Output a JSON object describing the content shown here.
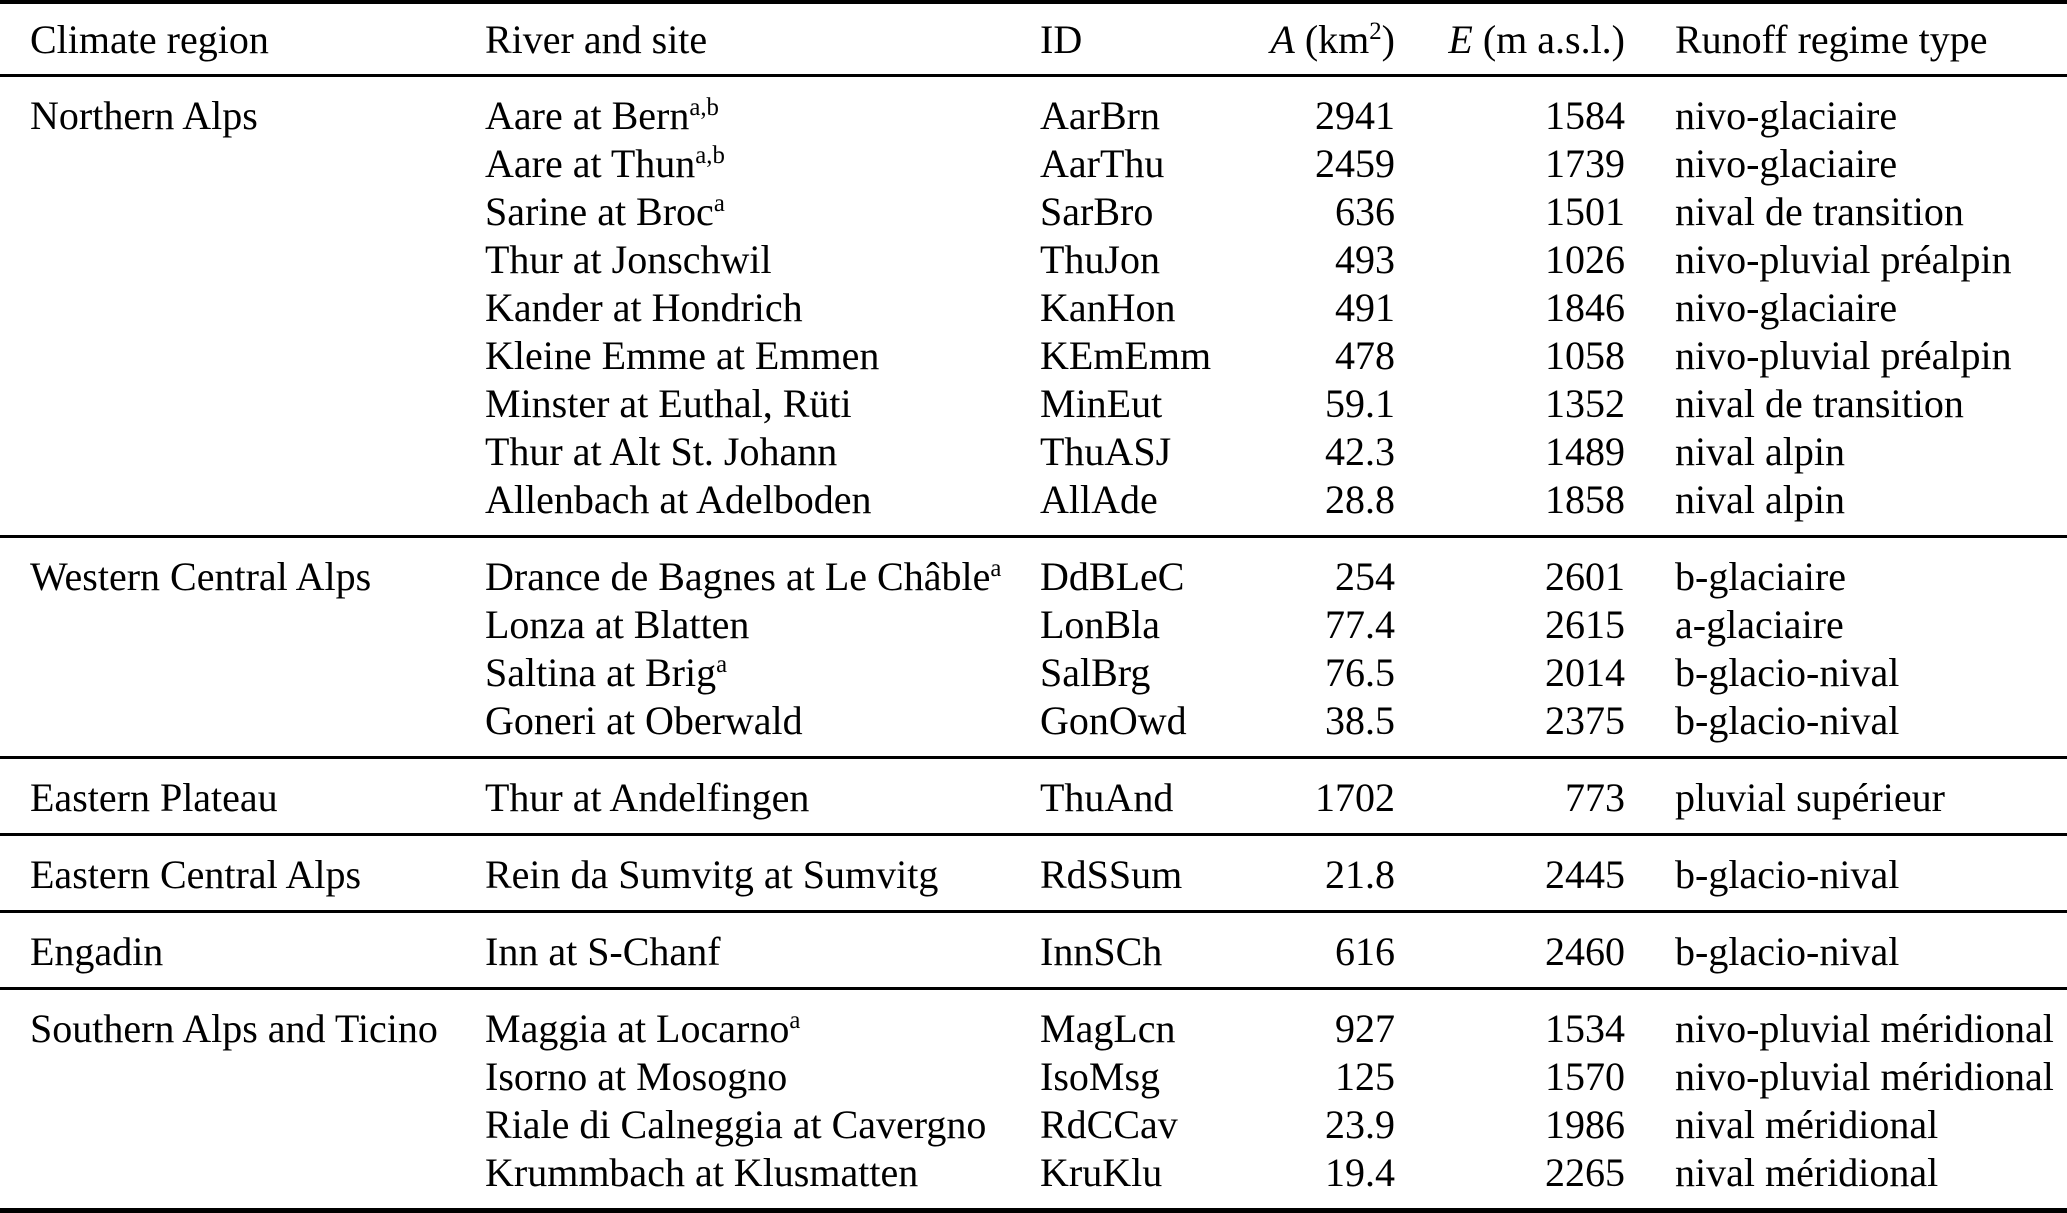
{
  "page": {
    "background_color": "#ffffff",
    "text_color": "#000000",
    "rule_color": "#000000"
  },
  "table": {
    "columns": {
      "climate_region": "Climate region",
      "river_site": "River and site",
      "id": "ID",
      "area_var": "A",
      "area_unit_pre": " (km",
      "area_unit_sup": "2",
      "area_unit_post": ")",
      "elev_var": "E",
      "elev_unit": " (m a.s.l.)",
      "regime": "Runoff regime type"
    },
    "sections": [
      {
        "region": "Northern Alps",
        "rows": [
          {
            "river": "Aare at Bern",
            "sup": "a,b",
            "id": "AarBrn",
            "area": "2941",
            "elevation": "1584",
            "regime": "nivo-glaciaire"
          },
          {
            "river": "Aare at Thun",
            "sup": "a,b",
            "id": "AarThu",
            "area": "2459",
            "elevation": "1739",
            "regime": "nivo-glaciaire"
          },
          {
            "river": "Sarine at Broc",
            "sup": "a",
            "id": "SarBro",
            "area": "636",
            "elevation": "1501",
            "regime": "nival de transition"
          },
          {
            "river": "Thur at Jonschwil",
            "sup": "",
            "id": "ThuJon",
            "area": "493",
            "elevation": "1026",
            "regime": "nivo-pluvial préalpin"
          },
          {
            "river": "Kander at Hondrich",
            "sup": "",
            "id": "KanHon",
            "area": "491",
            "elevation": "1846",
            "regime": "nivo-glaciaire"
          },
          {
            "river": "Kleine Emme at Emmen",
            "sup": "",
            "id": "KEmEmm",
            "area": "478",
            "elevation": "1058",
            "regime": "nivo-pluvial préalpin"
          },
          {
            "river": "Minster at Euthal, Rüti",
            "sup": "",
            "id": "MinEut",
            "area": "59.1",
            "elevation": "1352",
            "regime": "nival de transition"
          },
          {
            "river": "Thur at Alt St. Johann",
            "sup": "",
            "id": "ThuASJ",
            "area": "42.3",
            "elevation": "1489",
            "regime": "nival alpin"
          },
          {
            "river": "Allenbach at Adelboden",
            "sup": "",
            "id": "AllAde",
            "area": "28.8",
            "elevation": "1858",
            "regime": "nival alpin"
          }
        ]
      },
      {
        "region": "Western Central Alps",
        "rows": [
          {
            "river": "Drance de Bagnes at Le Châble",
            "sup": "a",
            "id": "DdBLeC",
            "area": "254",
            "elevation": "2601",
            "regime": "b-glaciaire"
          },
          {
            "river": "Lonza at Blatten",
            "sup": "",
            "id": "LonBla",
            "area": "77.4",
            "elevation": "2615",
            "regime": "a-glaciaire"
          },
          {
            "river": "Saltina at Brig",
            "sup": "a",
            "id": "SalBrg",
            "area": "76.5",
            "elevation": "2014",
            "regime": "b-glacio-nival"
          },
          {
            "river": "Goneri at Oberwald",
            "sup": "",
            "id": "GonOwd",
            "area": "38.5",
            "elevation": "2375",
            "regime": "b-glacio-nival"
          }
        ]
      },
      {
        "region": "Eastern Plateau",
        "rows": [
          {
            "river": "Thur at Andelfingen",
            "sup": "",
            "id": "ThuAnd",
            "area": "1702",
            "elevation": "773",
            "regime": "pluvial supérieur"
          }
        ]
      },
      {
        "region": "Eastern Central Alps",
        "rows": [
          {
            "river": "Rein da Sumvitg at Sumvitg",
            "sup": "",
            "id": "RdSSum",
            "area": "21.8",
            "elevation": "2445",
            "regime": "b-glacio-nival"
          }
        ]
      },
      {
        "region": "Engadin",
        "rows": [
          {
            "river": "Inn at S-Chanf",
            "sup": "",
            "id": "InnSCh",
            "area": "616",
            "elevation": "2460",
            "regime": "b-glacio-nival"
          }
        ]
      },
      {
        "region": "Southern Alps and Ticino",
        "rows": [
          {
            "river": "Maggia at Locarno",
            "sup": "a",
            "id": "MagLcn",
            "area": "927",
            "elevation": "1534",
            "regime": "nivo-pluvial méridional"
          },
          {
            "river": "Isorno at Mosogno",
            "sup": "",
            "id": "IsoMsg",
            "area": "125",
            "elevation": "1570",
            "regime": "nivo-pluvial méridional"
          },
          {
            "river": "Riale di Calneggia at Cavergno",
            "sup": "",
            "id": "RdCCav",
            "area": "23.9",
            "elevation": "1986",
            "regime": "nival méridional"
          },
          {
            "river": "Krummbach at Klusmatten",
            "sup": "",
            "id": "KruKlu",
            "area": "19.4",
            "elevation": "2265",
            "regime": "nival méridional"
          }
        ]
      }
    ]
  }
}
